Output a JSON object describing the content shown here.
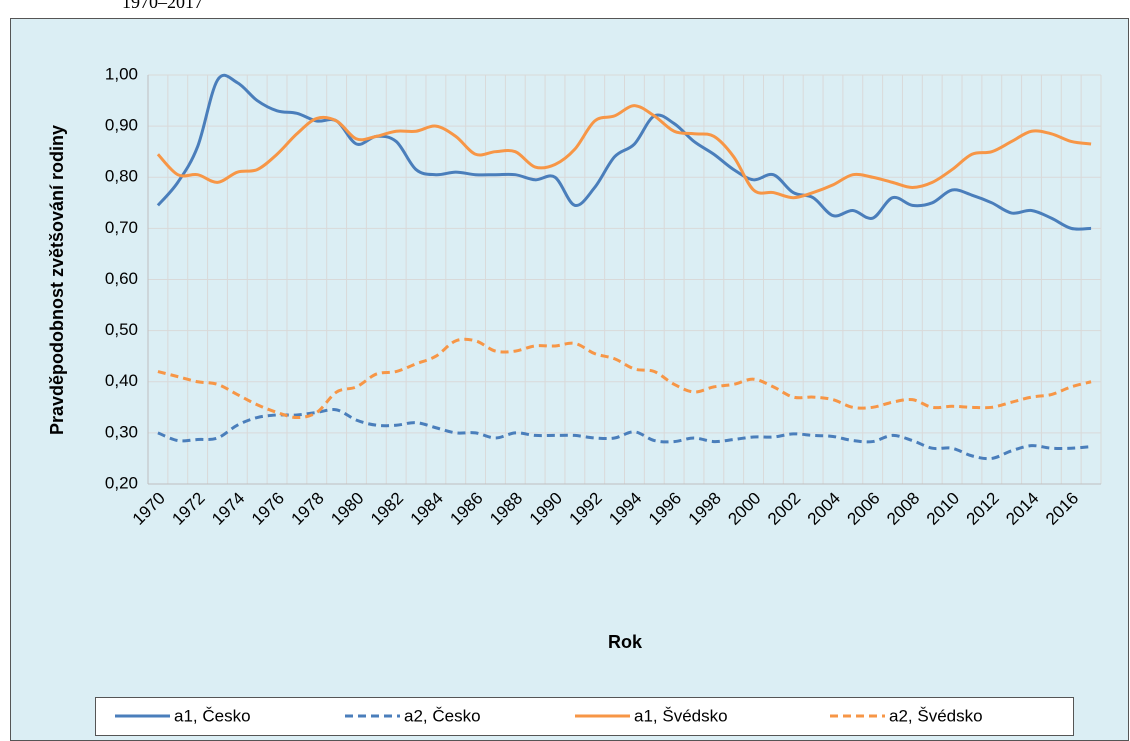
{
  "chart_data": {
    "type": "line",
    "subtitle": "1970–2017",
    "y_label": "Pravděpodobnost zvětšování rodiny",
    "x_label": "Rok",
    "categories": [
      "1970",
      null,
      "1972",
      null,
      "1974",
      null,
      "1976",
      null,
      "1978",
      null,
      "1980",
      null,
      "1982",
      null,
      "1984",
      null,
      "1986",
      null,
      "1988",
      null,
      "1990",
      null,
      "1992",
      null,
      "1994",
      null,
      "1996",
      null,
      "1998",
      null,
      "2000",
      null,
      "2002",
      null,
      "2004",
      null,
      "2006",
      null,
      "2008",
      null,
      "2010",
      null,
      "2012",
      null,
      "2014",
      null,
      "2016",
      null
    ],
    "ylim": [
      0.2,
      1.0
    ],
    "yticks": [
      {
        "value": 0.2,
        "label": "0,20"
      },
      {
        "value": 0.3,
        "label": "0,30"
      },
      {
        "value": 0.4,
        "label": "0,40"
      },
      {
        "value": 0.5,
        "label": "0,50"
      },
      {
        "value": 0.6,
        "label": "0,60"
      },
      {
        "value": 0.7,
        "label": "0,70"
      },
      {
        "value": 0.8,
        "label": "0,80"
      },
      {
        "value": 0.9,
        "label": "0,90"
      },
      {
        "value": 1.0,
        "label": "1,00"
      }
    ],
    "grid": true,
    "legend": "bottom",
    "series": [
      {
        "name": "a1, Česko",
        "color": "#4a7ebb",
        "dashed": false,
        "values": [
          0.745,
          0.79,
          0.86,
          0.99,
          0.985,
          0.95,
          0.93,
          0.925,
          0.91,
          0.91,
          0.865,
          0.88,
          0.87,
          0.815,
          0.805,
          0.81,
          0.805,
          0.805,
          0.805,
          0.795,
          0.8,
          0.745,
          0.78,
          0.84,
          0.865,
          0.92,
          0.905,
          0.87,
          0.845,
          0.815,
          0.795,
          0.805,
          0.77,
          0.76,
          0.725,
          0.735,
          0.72,
          0.76,
          0.745,
          0.75,
          0.775,
          0.765,
          0.75,
          0.73,
          0.735,
          0.72,
          0.7,
          0.7
        ]
      },
      {
        "name": "a2, Česko",
        "color": "#4a7ebb",
        "dashed": true,
        "values": [
          0.3,
          0.285,
          0.287,
          0.29,
          0.315,
          0.33,
          0.335,
          0.335,
          0.34,
          0.345,
          0.325,
          0.315,
          0.315,
          0.32,
          0.31,
          0.3,
          0.3,
          0.29,
          0.3,
          0.295,
          0.295,
          0.295,
          0.29,
          0.29,
          0.302,
          0.285,
          0.283,
          0.29,
          0.283,
          0.287,
          0.292,
          0.292,
          0.298,
          0.295,
          0.293,
          0.285,
          0.283,
          0.295,
          0.285,
          0.27,
          0.27,
          0.255,
          0.25,
          0.265,
          0.275,
          0.27,
          0.27,
          0.273
        ]
      },
      {
        "name": "a1, Švédsko",
        "color": "#f79646",
        "dashed": false,
        "values": [
          0.845,
          0.805,
          0.805,
          0.79,
          0.81,
          0.815,
          0.845,
          0.885,
          0.915,
          0.91,
          0.875,
          0.88,
          0.89,
          0.89,
          0.9,
          0.88,
          0.845,
          0.85,
          0.85,
          0.82,
          0.825,
          0.855,
          0.91,
          0.92,
          0.94,
          0.92,
          0.89,
          0.885,
          0.88,
          0.84,
          0.775,
          0.77,
          0.76,
          0.77,
          0.785,
          0.805,
          0.8,
          0.79,
          0.78,
          0.79,
          0.815,
          0.845,
          0.85,
          0.87,
          0.89,
          0.885,
          0.87,
          0.865
        ]
      },
      {
        "name": "a2, Švédsko",
        "color": "#f79646",
        "dashed": true,
        "values": [
          0.42,
          0.41,
          0.4,
          0.395,
          0.375,
          0.355,
          0.34,
          0.33,
          0.34,
          0.38,
          0.39,
          0.415,
          0.42,
          0.435,
          0.45,
          0.48,
          0.48,
          0.46,
          0.46,
          0.47,
          0.47,
          0.475,
          0.455,
          0.445,
          0.425,
          0.42,
          0.395,
          0.38,
          0.39,
          0.395,
          0.405,
          0.39,
          0.37,
          0.37,
          0.365,
          0.35,
          0.35,
          0.36,
          0.365,
          0.35,
          0.352,
          0.35,
          0.35,
          0.36,
          0.37,
          0.375,
          0.39,
          0.4
        ]
      }
    ]
  }
}
